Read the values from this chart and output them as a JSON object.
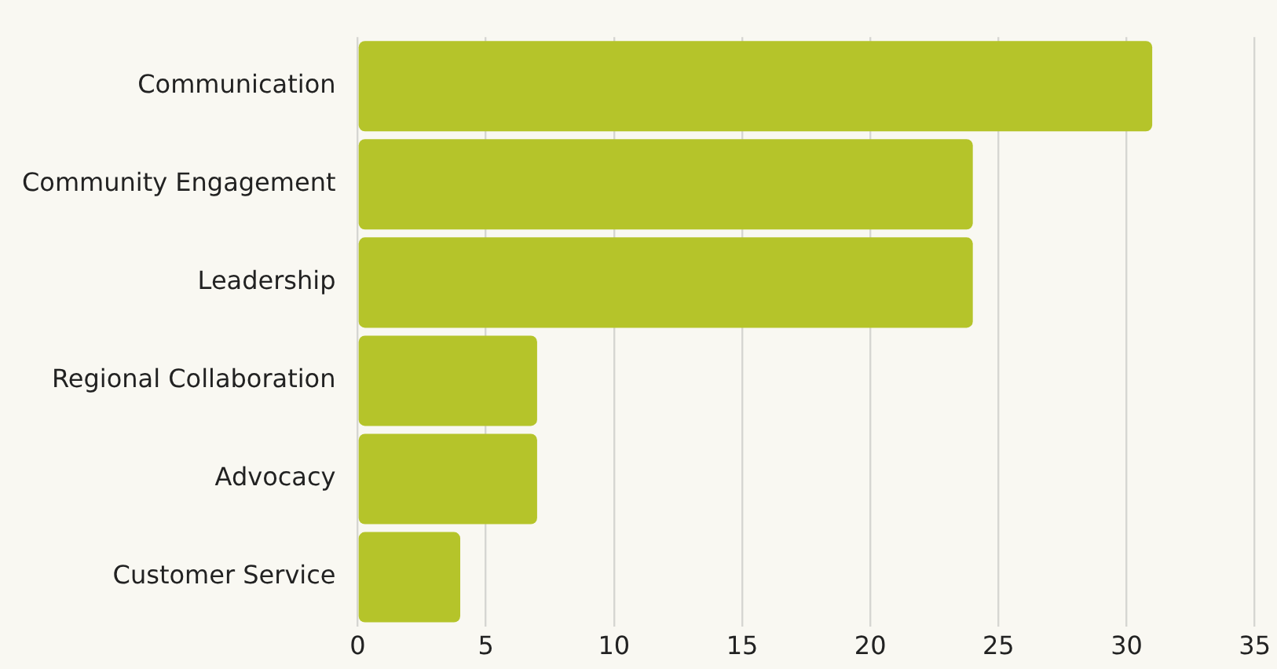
{
  "chart_data": {
    "type": "bar",
    "orientation": "horizontal",
    "categories": [
      "Communication",
      "Community Engagement",
      "Leadership",
      "Regional Collaboration",
      "Advocacy",
      "Customer Service"
    ],
    "values": [
      31,
      24,
      24,
      7,
      7,
      4
    ],
    "color": "#b5c42a",
    "xlim": [
      0,
      35
    ],
    "xticks": [
      0,
      5,
      10,
      15,
      20,
      25,
      30,
      35
    ],
    "grid": "x"
  }
}
